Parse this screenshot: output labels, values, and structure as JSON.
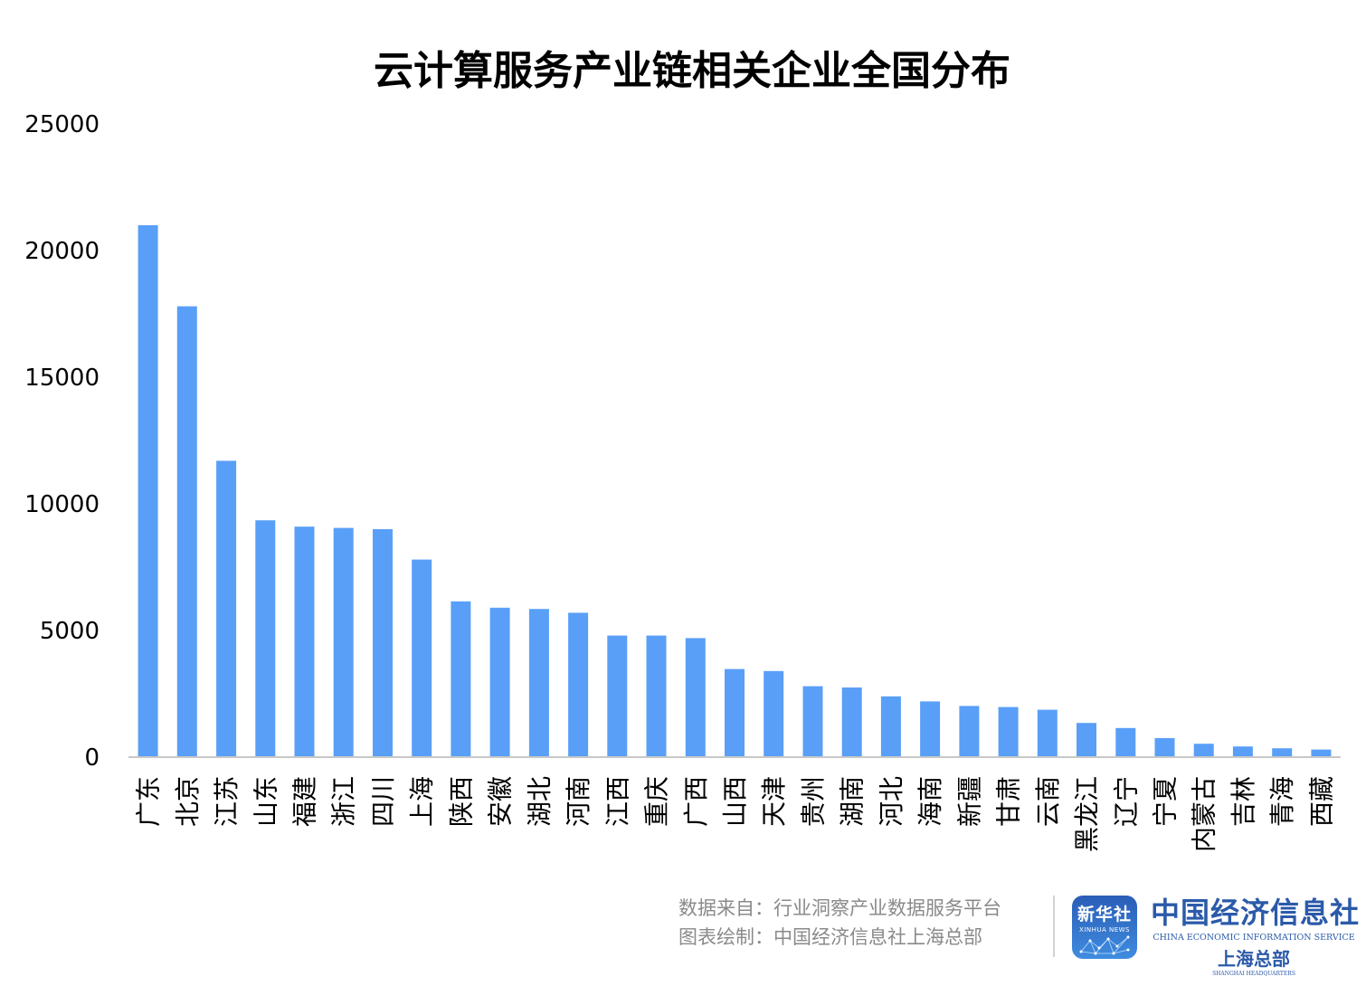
{
  "chart_data": {
    "type": "bar",
    "title": "云计算服务产业链相关企业全国分布",
    "xlabel": "",
    "ylabel": "",
    "ylim": [
      0,
      25000
    ],
    "yticks": [
      0,
      5000,
      10000,
      15000,
      20000,
      25000
    ],
    "legend": "none",
    "grid": false,
    "color": "#599ff7",
    "categories": [
      "广东",
      "北京",
      "江苏",
      "山东",
      "福建",
      "浙江",
      "四川",
      "上海",
      "陕西",
      "安徽",
      "湖北",
      "河南",
      "江西",
      "重庆",
      "广西",
      "山西",
      "天津",
      "贵州",
      "湖南",
      "河北",
      "海南",
      "新疆",
      "甘肃",
      "云南",
      "黑龙江",
      "辽宁",
      "宁夏",
      "内蒙古",
      "吉林",
      "青海",
      "西藏"
    ],
    "values": [
      21000,
      17800,
      11700,
      9350,
      9100,
      9050,
      9000,
      7800,
      6150,
      5900,
      5850,
      5700,
      4800,
      4800,
      4700,
      3480,
      3400,
      2800,
      2750,
      2400,
      2200,
      2020,
      1980,
      1870,
      1350,
      1150,
      750,
      530,
      420,
      350,
      300
    ]
  },
  "footer": {
    "source_line": "数据来自：行业洞察产业数据服务平台",
    "credit_line": "图表绘制：中国经济信息社上海总部"
  },
  "logos": {
    "xinhua_cn": "新华社",
    "xinhua_en": "XINHUA NEWS",
    "cei_cn": "中国经济信息社",
    "cei_en": "CHINA ECONOMIC INFORMATION SERVICE",
    "cei_sh": "上海总部",
    "cei_sh_en": "SHANGHAI HEADQUARTERS"
  }
}
